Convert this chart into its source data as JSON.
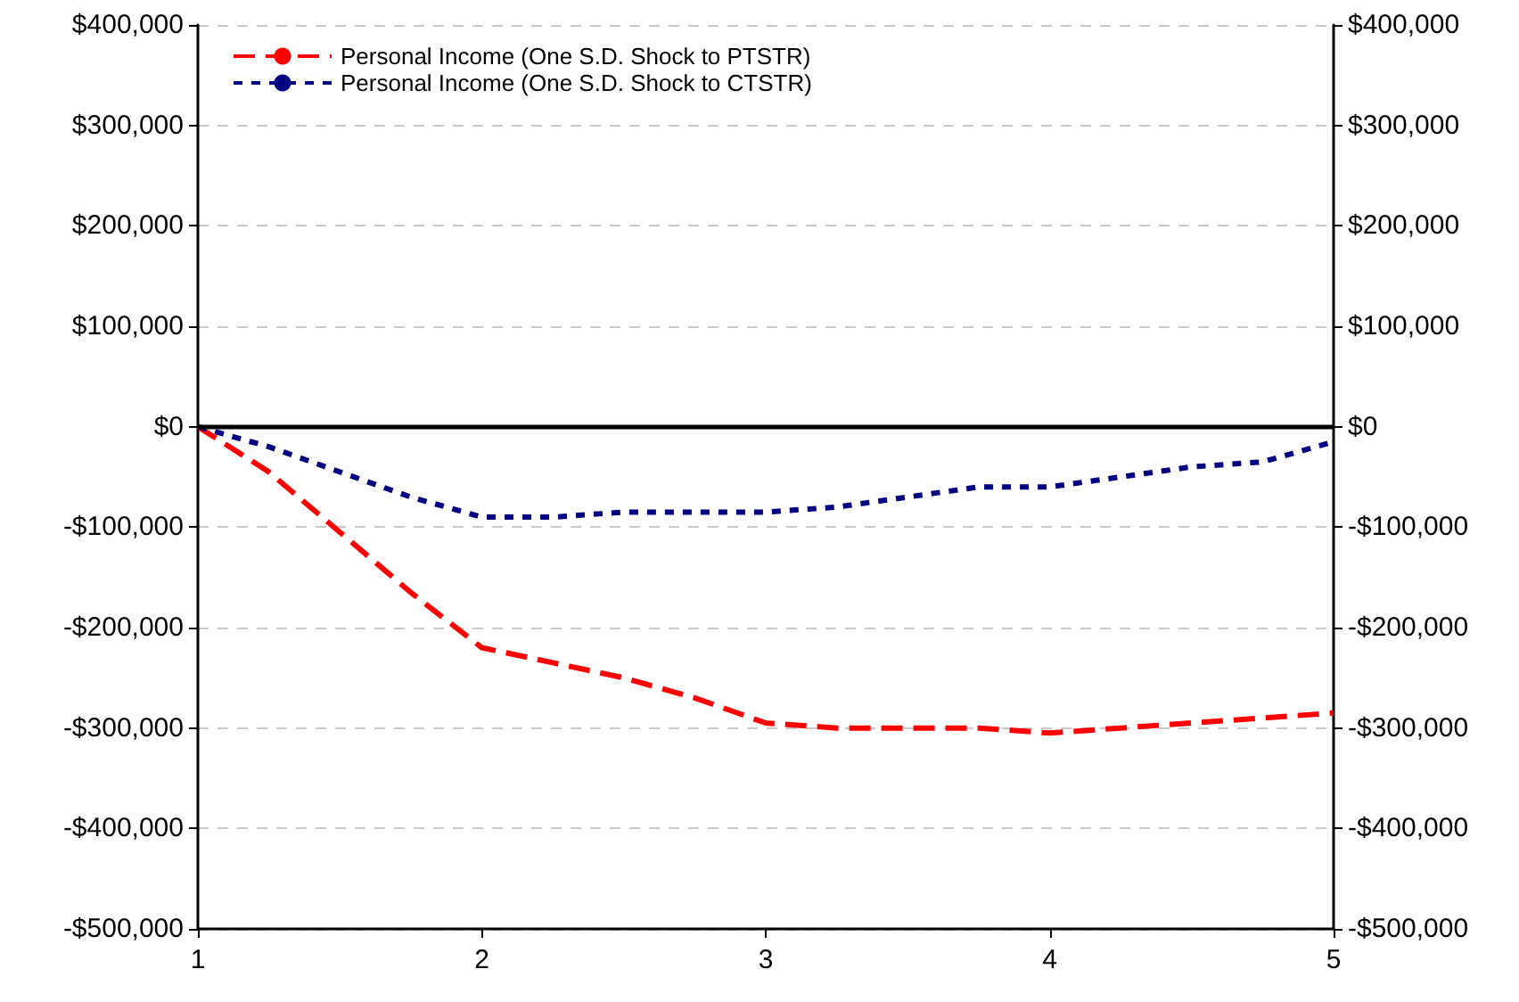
{
  "chart_data": {
    "type": "line",
    "x": [
      1,
      1.25,
      1.5,
      1.75,
      2,
      2.25,
      2.5,
      2.75,
      3,
      3.25,
      3.5,
      3.75,
      4,
      4.25,
      4.5,
      4.75,
      5
    ],
    "series": [
      {
        "name": "Personal Income (One S.D. Shock to PTSTR)",
        "color": "#ff0000",
        "line_style": "dashed",
        "values": [
          0,
          -45000,
          -105000,
          -165000,
          -220000,
          -235000,
          -250000,
          -270000,
          -295000,
          -300000,
          -300000,
          -300000,
          -305000,
          -300000,
          -295000,
          -290000,
          -285000
        ]
      },
      {
        "name": "Personal Income (One S.D. Shock to CTSTR)",
        "color": "#000080",
        "line_style": "dotted",
        "values": [
          0,
          -20000,
          -45000,
          -70000,
          -90000,
          -90000,
          -85000,
          -85000,
          -85000,
          -80000,
          -70000,
          -60000,
          -60000,
          -50000,
          -40000,
          -35000,
          -15000
        ]
      }
    ],
    "xlim": [
      1,
      5
    ],
    "xticks": [
      1,
      2,
      3,
      4,
      5
    ],
    "ylim": [
      -500000,
      400000
    ],
    "yticks": [
      {
        "value": -500000,
        "label": "-$500,000"
      },
      {
        "value": -400000,
        "label": "-$400,000"
      },
      {
        "value": -300000,
        "label": "-$300,000"
      },
      {
        "value": -200000,
        "label": "-$200,000"
      },
      {
        "value": -100000,
        "label": "-$100,000"
      },
      {
        "value": 0,
        "label": "$0"
      },
      {
        "value": 100000,
        "label": "$100,000"
      },
      {
        "value": 200000,
        "label": "$200,000"
      },
      {
        "value": 300000,
        "label": "$300,000"
      },
      {
        "value": 400000,
        "label": "$400,000"
      }
    ],
    "y2lim": [
      -500000,
      400000
    ],
    "y2ticks": [
      {
        "value": -500000,
        "label": "-$500,000"
      },
      {
        "value": -400000,
        "label": "-$400,000"
      },
      {
        "value": -300000,
        "label": "-$300,000"
      },
      {
        "value": -200000,
        "label": "-$200,000"
      },
      {
        "value": -100000,
        "label": "-$100,000"
      },
      {
        "value": 0,
        "label": "$0"
      },
      {
        "value": 100000,
        "label": "$100,000"
      },
      {
        "value": 200000,
        "label": "$200,000"
      },
      {
        "value": 300000,
        "label": "$300,000"
      },
      {
        "value": 400000,
        "label": "$400,000"
      }
    ],
    "ref_lines": [
      {
        "axis": "y",
        "value": 0,
        "color": "#000000"
      }
    ],
    "grid": "y",
    "legend": "top left",
    "marker": "none"
  }
}
